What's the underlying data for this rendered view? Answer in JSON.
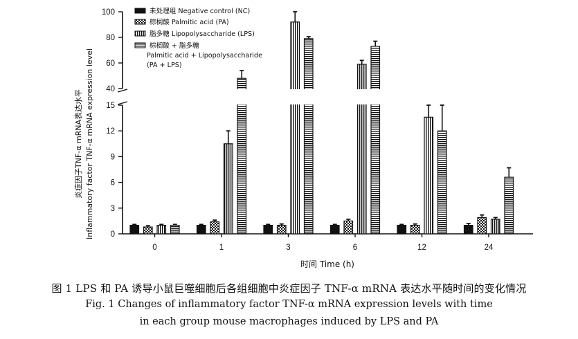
{
  "chart_data": {
    "type": "bar",
    "xlabel": "时间  Time (h)",
    "ylabel_cn": "炎症因子TNF-α mRNA表达水平",
    "ylabel_en": "Inflammatory factor TNF-α mRNA expression level",
    "categories": [
      "0",
      "1",
      "3",
      "6",
      "12",
      "24"
    ],
    "y_axis_broken": true,
    "y_lower_range": [
      0,
      15
    ],
    "y_upper_range": [
      40,
      100
    ],
    "y_lower_ticks": [
      "0",
      "3",
      "6",
      "9",
      "12",
      "15"
    ],
    "y_upper_ticks": [
      "40",
      "60",
      "80",
      "100"
    ],
    "legend_position": "top-left",
    "series": [
      {
        "name": "未处理组  Negative control (NC)",
        "pattern": "solid-black",
        "values": [
          1.0,
          1.0,
          1.0,
          1.0,
          1.0,
          1.0
        ],
        "errors": [
          0.1,
          0.1,
          0.1,
          0.1,
          0.1,
          0.2
        ]
      },
      {
        "name": "棕榈酸  Palmitic acid (PA)",
        "pattern": "checker",
        "values": [
          0.8,
          1.4,
          1.0,
          1.5,
          1.0,
          1.9
        ],
        "errors": [
          0.15,
          0.2,
          0.15,
          0.2,
          0.15,
          0.3
        ]
      },
      {
        "name": "脂多糖  Lipopolysaccharide (LPS)",
        "pattern": "vertical-stripes",
        "values": [
          1.0,
          10.5,
          92,
          59,
          13.6,
          1.7
        ],
        "errors": [
          0.1,
          1.5,
          8,
          3,
          1.4,
          0.2
        ]
      },
      {
        "name": "棕榈酸 + 脂多糖  Palmitic acid + Lipopolysaccharide (PA + LPS)",
        "pattern": "horizontal-stripes",
        "values": [
          1.0,
          48,
          79,
          73,
          12.0,
          6.6
        ],
        "errors": [
          0.1,
          6,
          1.5,
          4,
          3,
          1.1
        ]
      }
    ]
  },
  "legend": {
    "item0_line1": "未处理组  Negative control (NC)",
    "item1_line1": "棕榈酸  Palmitic acid (PA)",
    "item2_line1": "脂多糖  Lipopolysaccharide (LPS)",
    "item3_line1": "棕榈酸 + 脂多糖",
    "item3_line2": "Palmitic acid + Lipopolysaccharide",
    "item3_line3": "(PA + LPS)"
  },
  "caption": {
    "zh": "图 1    LPS 和 PA 诱导小鼠巨噬细胞后各组细胞中炎症因子 TNF-α mRNA 表达水平随时间的变化情况",
    "en_line1": "Fig. 1    Changes of inflammatory factor TNF-α mRNA expression levels with time",
    "en_line2": "in each group mouse macrophages induced by LPS and PA"
  }
}
